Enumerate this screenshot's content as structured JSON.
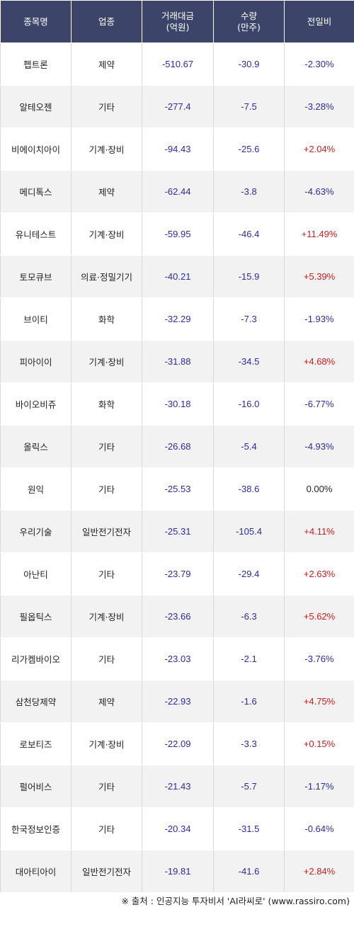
{
  "header": {
    "name": "종목명",
    "sector": "업종",
    "amount_line1": "거래대금",
    "amount_line2": "(억원)",
    "volume_line1": "수량",
    "volume_line2": "(만주)",
    "change": "전일비"
  },
  "rows": [
    {
      "name": "펩트론",
      "sector": "제약",
      "amount": "-510.67",
      "volume": "-30.9",
      "change": "-2.30%",
      "dir": "down"
    },
    {
      "name": "알테오젠",
      "sector": "기타",
      "amount": "-277.4",
      "volume": "-7.5",
      "change": "-3.28%",
      "dir": "down"
    },
    {
      "name": "비에이치아이",
      "sector": "기계·장비",
      "amount": "-94.43",
      "volume": "-25.6",
      "change": "+2.04%",
      "dir": "up"
    },
    {
      "name": "메디톡스",
      "sector": "제약",
      "amount": "-62.44",
      "volume": "-3.8",
      "change": "-4.63%",
      "dir": "down"
    },
    {
      "name": "유니테스트",
      "sector": "기계·장비",
      "amount": "-59.95",
      "volume": "-46.4",
      "change": "+11.49%",
      "dir": "up"
    },
    {
      "name": "토모큐브",
      "sector": "의료·정밀기기",
      "amount": "-40.21",
      "volume": "-15.9",
      "change": "+5.39%",
      "dir": "up"
    },
    {
      "name": "브이티",
      "sector": "화학",
      "amount": "-32.29",
      "volume": "-7.3",
      "change": "-1.93%",
      "dir": "down"
    },
    {
      "name": "피아이이",
      "sector": "기계·장비",
      "amount": "-31.88",
      "volume": "-34.5",
      "change": "+4.68%",
      "dir": "up"
    },
    {
      "name": "바이오비쥬",
      "sector": "화학",
      "amount": "-30.18",
      "volume": "-16.0",
      "change": "-6.77%",
      "dir": "down"
    },
    {
      "name": "올릭스",
      "sector": "기타",
      "amount": "-26.68",
      "volume": "-5.4",
      "change": "-4.93%",
      "dir": "down"
    },
    {
      "name": "원익",
      "sector": "기타",
      "amount": "-25.53",
      "volume": "-38.6",
      "change": "0.00%",
      "dir": "flat"
    },
    {
      "name": "우리기술",
      "sector": "일반전기전자",
      "amount": "-25.31",
      "volume": "-105.4",
      "change": "+4.11%",
      "dir": "up"
    },
    {
      "name": "아난티",
      "sector": "기타",
      "amount": "-23.79",
      "volume": "-29.4",
      "change": "+2.63%",
      "dir": "up"
    },
    {
      "name": "필옵틱스",
      "sector": "기계·장비",
      "amount": "-23.66",
      "volume": "-6.3",
      "change": "+5.62%",
      "dir": "up"
    },
    {
      "name": "리가켐바이오",
      "sector": "기타",
      "amount": "-23.03",
      "volume": "-2.1",
      "change": "-3.76%",
      "dir": "down"
    },
    {
      "name": "삼천당제약",
      "sector": "제약",
      "amount": "-22.93",
      "volume": "-1.6",
      "change": "+4.75%",
      "dir": "up"
    },
    {
      "name": "로보티즈",
      "sector": "기계·장비",
      "amount": "-22.09",
      "volume": "-3.3",
      "change": "+0.15%",
      "dir": "up"
    },
    {
      "name": "펄어비스",
      "sector": "기타",
      "amount": "-21.43",
      "volume": "-5.7",
      "change": "-1.17%",
      "dir": "down"
    },
    {
      "name": "한국정보인증",
      "sector": "기타",
      "amount": "-20.34",
      "volume": "-31.5",
      "change": "-0.64%",
      "dir": "down"
    },
    {
      "name": "대아티아이",
      "sector": "일반전기전자",
      "amount": "-19.81",
      "volume": "-41.6",
      "change": "+2.84%",
      "dir": "up"
    }
  ],
  "colors": {
    "header_bg": "#3c4469",
    "up": "#d41a1a",
    "down": "#2b2ba6",
    "number": "#2b2ba6"
  },
  "source": "※ 출처 : 인공지능 투자비서 'AI라씨로' (www.rassiro.com)"
}
